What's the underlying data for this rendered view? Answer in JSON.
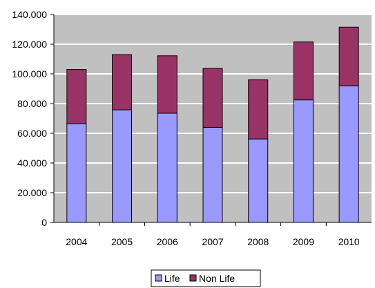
{
  "chart_data": {
    "type": "bar",
    "stacked": true,
    "title": "",
    "xlabel": "",
    "ylabel": "",
    "categories": [
      "2004",
      "2005",
      "2006",
      "2007",
      "2008",
      "2009",
      "2010"
    ],
    "series": [
      {
        "name": "Life",
        "color": "#9999ff",
        "values": [
          66500,
          75800,
          73500,
          64000,
          56200,
          82500,
          92000
        ]
      },
      {
        "name": "Non Life",
        "color": "#993366",
        "values": [
          36500,
          37200,
          38700,
          39700,
          39800,
          39000,
          39500
        ]
      }
    ],
    "ylim": [
      0,
      140000
    ],
    "y_ticks": [
      "0",
      "20.000",
      "40.000",
      "60.000",
      "80.000",
      "100.000",
      "120.000",
      "140.000"
    ],
    "grid": true,
    "plot_background": "#c0c0c0",
    "gridline_color": "#ffffff",
    "legend_position": "bottom"
  }
}
